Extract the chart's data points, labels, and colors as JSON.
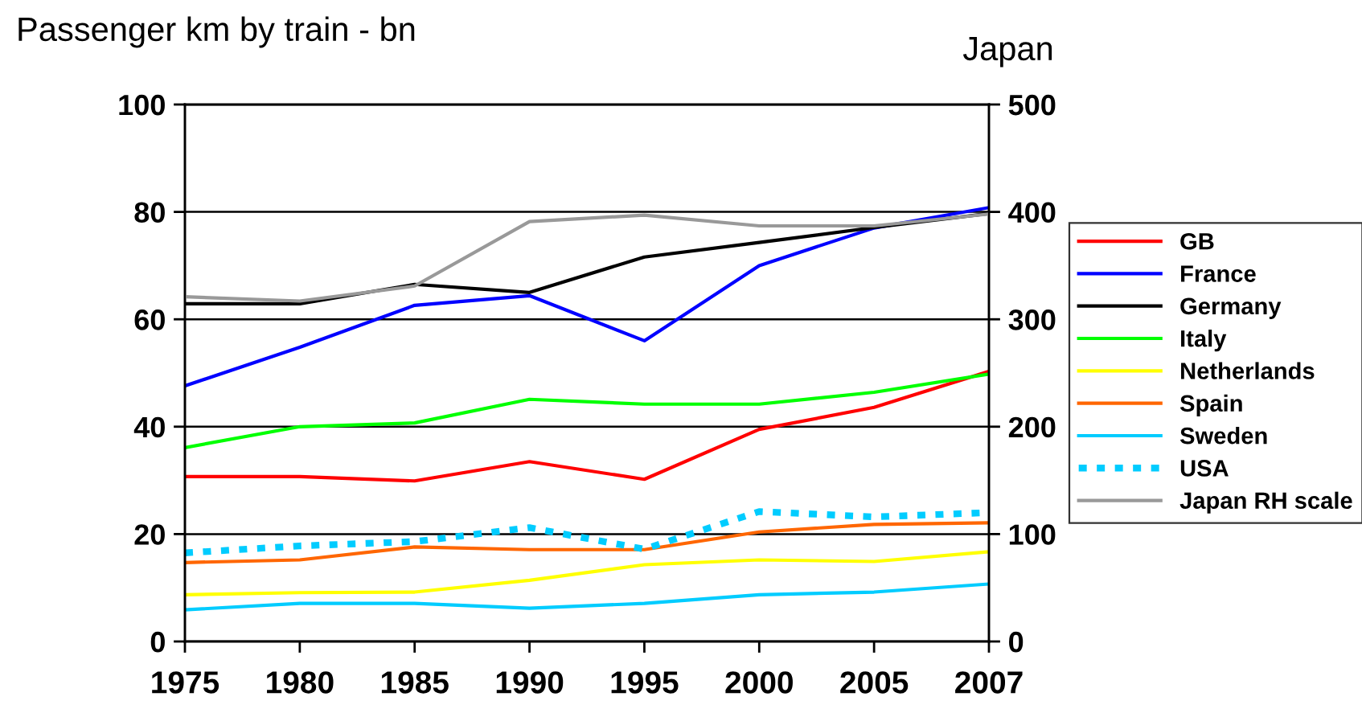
{
  "chart_data": {
    "type": "line",
    "title": "Passenger km by train - bn",
    "y2label": "Japan",
    "categories": [
      "1975",
      "1980",
      "1985",
      "1990",
      "1995",
      "2000",
      "2005",
      "2007"
    ],
    "ylim": [
      0,
      100
    ],
    "yticks": [
      0,
      20,
      40,
      60,
      80,
      100
    ],
    "y2lim": [
      0,
      500
    ],
    "y2ticks": [
      0,
      100,
      200,
      300,
      400,
      500
    ],
    "grid": "y",
    "legend": "right",
    "marker": "none",
    "line_style": "solid",
    "series": [
      {
        "name": "GB",
        "color": "#ff0000",
        "values": [
          30.7,
          30.7,
          29.9,
          33.5,
          30.2,
          39.5,
          43.6,
          50.3
        ]
      },
      {
        "name": "France",
        "color": "#0000ff",
        "values": [
          47.6,
          54.8,
          62.6,
          64.4,
          56.0,
          70.0,
          77.0,
          80.8
        ]
      },
      {
        "name": "Germany",
        "color": "#000000",
        "values": [
          62.9,
          62.9,
          66.5,
          65.0,
          71.6,
          74.3,
          77.1,
          79.7
        ]
      },
      {
        "name": "Italy",
        "color": "#00ff00",
        "values": [
          36.1,
          40.0,
          40.7,
          45.1,
          44.2,
          44.2,
          46.4,
          49.8
        ]
      },
      {
        "name": "Netherlands",
        "color": "#ffff00",
        "values": [
          8.7,
          9.1,
          9.2,
          11.4,
          14.3,
          15.2,
          14.9,
          16.7
        ]
      },
      {
        "name": "Spain",
        "color": "#ff6600",
        "values": [
          14.7,
          15.2,
          17.6,
          17.1,
          17.1,
          20.4,
          21.8,
          22.1
        ]
      },
      {
        "name": "Sweden",
        "color": "#00ccff",
        "values": [
          5.9,
          7.1,
          7.1,
          6.2,
          7.1,
          8.7,
          9.2,
          10.7
        ]
      },
      {
        "name": "USA",
        "color": "#00ccff",
        "line_style": "dotted",
        "values": [
          16.5,
          17.8,
          18.6,
          21.2,
          17.2,
          24.2,
          23.2,
          24.0
        ]
      },
      {
        "name": "Japan RH scale",
        "color": "#999999",
        "axis": "y2",
        "values": [
          321,
          317,
          331,
          391,
          397,
          387,
          387,
          398
        ]
      }
    ]
  }
}
